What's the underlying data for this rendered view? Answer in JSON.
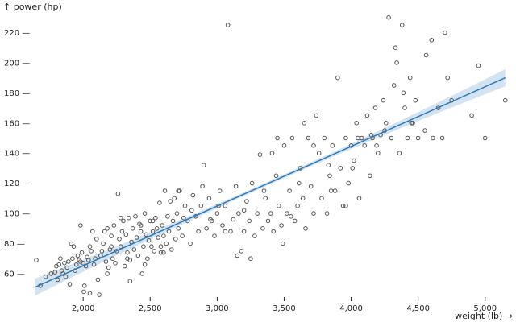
{
  "chart_data": {
    "type": "scatter",
    "title": "",
    "xlabel": "weight (lb) →",
    "ylabel": "↑ power (hp)",
    "xlim": [
      1620,
      5170
    ],
    "ylim": [
      45,
      232
    ],
    "x_ticks": [
      2000,
      2500,
      3000,
      3500,
      4000,
      4500,
      5000
    ],
    "x_tick_labels": [
      "2,000",
      "2,500",
      "3,000",
      "3,500",
      "4,000",
      "4,500",
      "5,000"
    ],
    "y_ticks": [
      60,
      80,
      100,
      120,
      140,
      160,
      180,
      200,
      220
    ],
    "y_tick_labels": [
      "60 —",
      "80 —",
      "100 —",
      "120 —",
      "140 —",
      "160 —",
      "180 —",
      "200 —",
      "220 —"
    ],
    "grid": false,
    "colors": {
      "points": "#555555",
      "regression": "#2f7ab5",
      "band": "#c9dcee"
    },
    "regression": {
      "x": [
        1640,
        5150
      ],
      "y": [
        51,
        190
      ]
    },
    "points": [
      [
        1650,
        69
      ],
      [
        1680,
        52
      ],
      [
        1760,
        60
      ],
      [
        1790,
        61
      ],
      [
        1800,
        65
      ],
      [
        1810,
        56
      ],
      [
        1820,
        66
      ],
      [
        1830,
        70
      ],
      [
        1840,
        62
      ],
      [
        1850,
        60
      ],
      [
        1860,
        67
      ],
      [
        1870,
        58
      ],
      [
        1880,
        64
      ],
      [
        1890,
        68
      ],
      [
        1900,
        53
      ],
      [
        1910,
        80
      ],
      [
        1920,
        70
      ],
      [
        1930,
        78
      ],
      [
        1940,
        62
      ],
      [
        1950,
        66
      ],
      [
        1960,
        72
      ],
      [
        1970,
        69
      ],
      [
        1980,
        68
      ],
      [
        1990,
        74
      ],
      [
        2000,
        67
      ],
      [
        2005,
        48
      ],
      [
        2010,
        52
      ],
      [
        2020,
        65
      ],
      [
        2030,
        71
      ],
      [
        2040,
        69
      ],
      [
        2050,
        78
      ],
      [
        2060,
        75
      ],
      [
        2070,
        88
      ],
      [
        2080,
        66
      ],
      [
        2090,
        70
      ],
      [
        2100,
        83
      ],
      [
        2110,
        56
      ],
      [
        2120,
        46
      ],
      [
        2130,
        72
      ],
      [
        2140,
        75
      ],
      [
        2150,
        80
      ],
      [
        2160,
        88
      ],
      [
        2170,
        68
      ],
      [
        2180,
        90
      ],
      [
        2190,
        64
      ],
      [
        2200,
        76
      ],
      [
        2210,
        85
      ],
      [
        2220,
        70
      ],
      [
        2230,
        92
      ],
      [
        2240,
        67
      ],
      [
        2250,
        75
      ],
      [
        2260,
        113
      ],
      [
        2270,
        83
      ],
      [
        2280,
        78
      ],
      [
        2290,
        88
      ],
      [
        2300,
        95
      ],
      [
        2310,
        65
      ],
      [
        2320,
        86
      ],
      [
        2330,
        74
      ],
      [
        2340,
        97
      ],
      [
        2350,
        69
      ],
      [
        2360,
        81
      ],
      [
        2370,
        90
      ],
      [
        2380,
        76
      ],
      [
        2390,
        98
      ],
      [
        2400,
        84
      ],
      [
        2410,
        72
      ],
      [
        2420,
        93
      ],
      [
        2430,
        88
      ],
      [
        2440,
        60
      ],
      [
        2450,
        78
      ],
      [
        2460,
        100
      ],
      [
        2470,
        86
      ],
      [
        2480,
        70
      ],
      [
        2490,
        82
      ],
      [
        2500,
        95
      ],
      [
        2510,
        78
      ],
      [
        2520,
        88
      ],
      [
        2530,
        75
      ],
      [
        2540,
        97
      ],
      [
        2550,
        90
      ],
      [
        2560,
        84
      ],
      [
        2570,
        107
      ],
      [
        2580,
        74
      ],
      [
        2590,
        92
      ],
      [
        2600,
        85
      ],
      [
        2610,
        115
      ],
      [
        2620,
        80
      ],
      [
        2630,
        98
      ],
      [
        2640,
        88
      ],
      [
        2650,
        108
      ],
      [
        2660,
        76
      ],
      [
        2670,
        95
      ],
      [
        2680,
        110
      ],
      [
        2690,
        83
      ],
      [
        2700,
        100
      ],
      [
        2710,
        90
      ],
      [
        2720,
        115
      ],
      [
        2740,
        85
      ],
      [
        2760,
        105
      ],
      [
        2780,
        95
      ],
      [
        2800,
        80
      ],
      [
        2820,
        112
      ],
      [
        2840,
        98
      ],
      [
        2860,
        88
      ],
      [
        2880,
        105
      ],
      [
        2900,
        132
      ],
      [
        2920,
        90
      ],
      [
        2940,
        110
      ],
      [
        2960,
        95
      ],
      [
        2980,
        85
      ],
      [
        3000,
        100
      ],
      [
        3020,
        115
      ],
      [
        3040,
        92
      ],
      [
        3060,
        105
      ],
      [
        3080,
        225
      ],
      [
        3100,
        88
      ],
      [
        3120,
        96
      ],
      [
        3140,
        118
      ],
      [
        3160,
        100
      ],
      [
        3180,
        75
      ],
      [
        3200,
        88
      ],
      [
        3220,
        108
      ],
      [
        3240,
        95
      ],
      [
        3260,
        120
      ],
      [
        3280,
        85
      ],
      [
        3300,
        100
      ],
      [
        3320,
        139
      ],
      [
        3340,
        90
      ],
      [
        3360,
        110
      ],
      [
        3380,
        95
      ],
      [
        3400,
        100
      ],
      [
        3420,
        88
      ],
      [
        3440,
        125
      ],
      [
        3460,
        105
      ],
      [
        3480,
        92
      ],
      [
        3500,
        145
      ],
      [
        3520,
        100
      ],
      [
        3540,
        115
      ],
      [
        3560,
        150
      ],
      [
        3580,
        95
      ],
      [
        3600,
        105
      ],
      [
        3620,
        130
      ],
      [
        3640,
        110
      ],
      [
        3660,
        90
      ],
      [
        3680,
        150
      ],
      [
        3700,
        118
      ],
      [
        3720,
        100
      ],
      [
        3740,
        165
      ],
      [
        3760,
        140
      ],
      [
        3780,
        110
      ],
      [
        3800,
        150
      ],
      [
        3820,
        100
      ],
      [
        3840,
        125
      ],
      [
        3860,
        145
      ],
      [
        3880,
        115
      ],
      [
        3900,
        190
      ],
      [
        3920,
        130
      ],
      [
        3940,
        105
      ],
      [
        3960,
        150
      ],
      [
        3980,
        120
      ],
      [
        4000,
        145
      ],
      [
        4020,
        135
      ],
      [
        4040,
        160
      ],
      [
        4060,
        110
      ],
      [
        4080,
        150
      ],
      [
        4100,
        145
      ],
      [
        4120,
        165
      ],
      [
        4140,
        125
      ],
      [
        4160,
        150
      ],
      [
        4180,
        170
      ],
      [
        4200,
        140
      ],
      [
        4220,
        152
      ],
      [
        4240,
        175
      ],
      [
        4260,
        160
      ],
      [
        4280,
        230
      ],
      [
        4300,
        150
      ],
      [
        4320,
        185
      ],
      [
        4340,
        200
      ],
      [
        4360,
        140
      ],
      [
        4380,
        225
      ],
      [
        4400,
        170
      ],
      [
        4420,
        150
      ],
      [
        4440,
        190
      ],
      [
        4460,
        160
      ],
      [
        4480,
        175
      ],
      [
        4500,
        150
      ],
      [
        4550,
        155
      ],
      [
        4600,
        215
      ],
      [
        4650,
        170
      ],
      [
        4700,
        220
      ],
      [
        4750,
        175
      ],
      [
        4900,
        165
      ],
      [
        4950,
        198
      ],
      [
        5000,
        150
      ],
      [
        5150,
        175
      ],
      [
        1720,
        58
      ],
      [
        2180,
        60
      ],
      [
        2350,
        55
      ],
      [
        2460,
        66
      ],
      [
        2600,
        74
      ],
      [
        2750,
        97
      ],
      [
        2950,
        96
      ],
      [
        3150,
        72
      ],
      [
        3350,
        115
      ],
      [
        3450,
        150
      ],
      [
        3550,
        98
      ],
      [
        3650,
        160
      ],
      [
        3850,
        115
      ],
      [
        4050,
        150
      ],
      [
        4250,
        155
      ],
      [
        4450,
        160
      ],
      [
        4680,
        150
      ],
      [
        2050,
        47
      ],
      [
        1980,
        92
      ],
      [
        2210,
        78
      ],
      [
        2330,
        70
      ],
      [
        2520,
        95
      ],
      [
        2710,
        115
      ],
      [
        2890,
        118
      ],
      [
        3060,
        88
      ],
      [
        3250,
        70
      ],
      [
        3490,
        80
      ],
      [
        3720,
        145
      ],
      [
        3960,
        105
      ],
      [
        4150,
        152
      ],
      [
        4330,
        210
      ],
      [
        4560,
        205
      ],
      [
        4720,
        190
      ],
      [
        2280,
        97
      ],
      [
        2430,
        92
      ],
      [
        2580,
        78
      ],
      [
        2810,
        102
      ],
      [
        3010,
        105
      ],
      [
        3200,
        102
      ],
      [
        3410,
        140
      ],
      [
        3610,
        120
      ],
      [
        3830,
        132
      ],
      [
        4010,
        130
      ],
      [
        4190,
        145
      ],
      [
        4390,
        180
      ],
      [
        4610,
        150
      ]
    ]
  }
}
